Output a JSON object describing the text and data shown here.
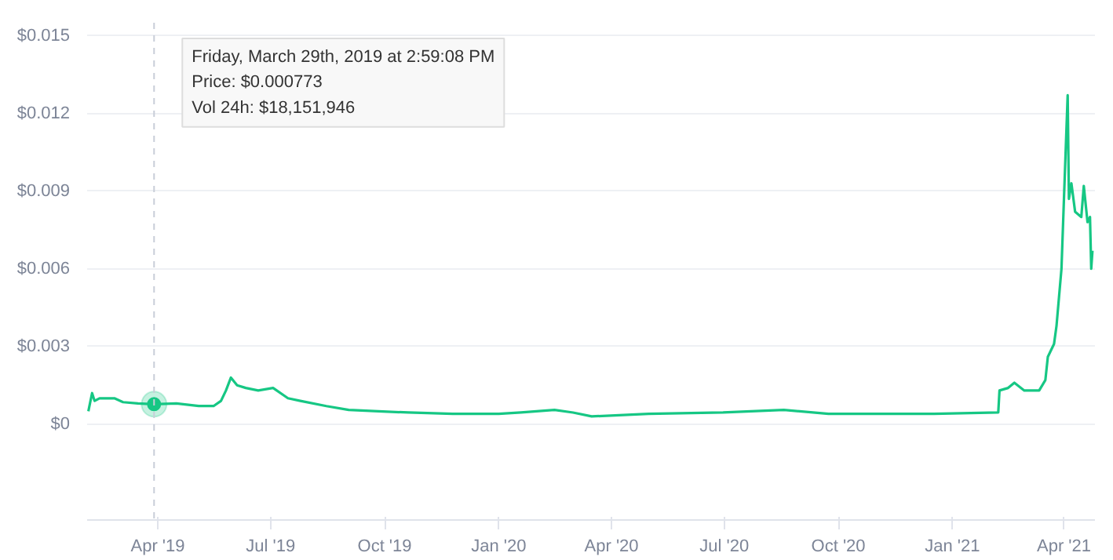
{
  "chart_data": {
    "type": "line",
    "x": [
      "2019-02-04",
      "2019-02-07",
      "2019-02-09",
      "2019-02-13",
      "2019-02-18",
      "2019-02-25",
      "2019-03-04",
      "2019-03-16",
      "2019-03-29",
      "2019-04-16",
      "2019-05-04",
      "2019-05-16",
      "2019-05-22",
      "2019-05-26",
      "2019-05-30",
      "2019-06-04",
      "2019-06-11",
      "2019-06-21",
      "2019-07-03",
      "2019-07-15",
      "2019-07-25",
      "2019-08-15",
      "2019-09-02",
      "2019-09-26",
      "2019-10-20",
      "2019-11-25",
      "2020-01-01",
      "2020-01-19",
      "2020-02-15",
      "2020-03-01",
      "2020-03-16",
      "2020-05-01",
      "2020-06-30",
      "2020-08-18",
      "2020-09-23",
      "2020-12-17",
      "2021-02-07",
      "2021-02-08",
      "2021-02-15",
      "2021-02-20",
      "2021-02-28",
      "2021-03-12",
      "2021-03-17",
      "2021-03-19",
      "2021-03-24",
      "2021-03-26",
      "2021-03-30",
      "2021-04-01",
      "2021-04-04",
      "2021-04-05",
      "2021-04-07",
      "2021-04-10",
      "2021-04-15",
      "2021-04-17",
      "2021-04-20",
      "2021-04-22",
      "2021-04-23",
      "2021-04-24"
    ],
    "series": [
      {
        "color": "#16c784",
        "values": [
          0.0005,
          0.0012,
          0.0009,
          0.001,
          0.001,
          0.001,
          0.00085,
          0.0008,
          0.000773,
          0.0008,
          0.0007,
          0.0007,
          0.0009,
          0.0013,
          0.0018,
          0.0015,
          0.0014,
          0.0013,
          0.0014,
          0.001,
          0.0009,
          0.0007,
          0.00055,
          0.0005,
          0.00045,
          0.0004,
          0.0004,
          0.00045,
          0.00055,
          0.00045,
          0.0003,
          0.0004,
          0.00045,
          0.00055,
          0.0004,
          0.0004,
          0.00045,
          0.0013,
          0.0014,
          0.0016,
          0.0013,
          0.0013,
          0.0017,
          0.0026,
          0.0031,
          0.0038,
          0.006,
          0.0087,
          0.0127,
          0.0087,
          0.0093,
          0.0082,
          0.008,
          0.0092,
          0.0078,
          0.008,
          0.006,
          0.0067
        ]
      }
    ],
    "xlim": [
      "2019-02-03",
      "2021-04-26"
    ],
    "xticks": [
      {
        "value": "2019-04-01",
        "label": "Apr '19"
      },
      {
        "value": "2019-07-01",
        "label": "Jul '19"
      },
      {
        "value": "2019-10-01",
        "label": "Oct '19"
      },
      {
        "value": "2020-01-01",
        "label": "Jan '20"
      },
      {
        "value": "2020-04-01",
        "label": "Apr '20"
      },
      {
        "value": "2020-07-01",
        "label": "Jul '20"
      },
      {
        "value": "2020-10-01",
        "label": "Oct '20"
      },
      {
        "value": "2021-01-01",
        "label": "Jan '21"
      },
      {
        "value": "2021-04-01",
        "label": "Apr '21"
      }
    ],
    "ylim": [
      -0.0037,
      0.0155
    ],
    "yticks": [
      {
        "value": 0,
        "label": "$0"
      },
      {
        "value": 0.003,
        "label": "$0.003"
      },
      {
        "value": 0.006,
        "label": "$0.006"
      },
      {
        "value": 0.009,
        "label": "$0.009"
      },
      {
        "value": 0.012,
        "label": "$0.012"
      },
      {
        "value": 0.015,
        "label": "$0.015"
      }
    ],
    "grid": "y",
    "ref_lines": [
      {
        "axis": "x",
        "value": "2019-03-29",
        "label": null,
        "color": "#c8cdd8",
        "line_style": "dashed"
      }
    ],
    "annotations": [
      "Friday, March 29th, 2019 at 2:59:08 PM\nPrice: $0.000773\nVol 24h: $18,151,946"
    ]
  }
}
